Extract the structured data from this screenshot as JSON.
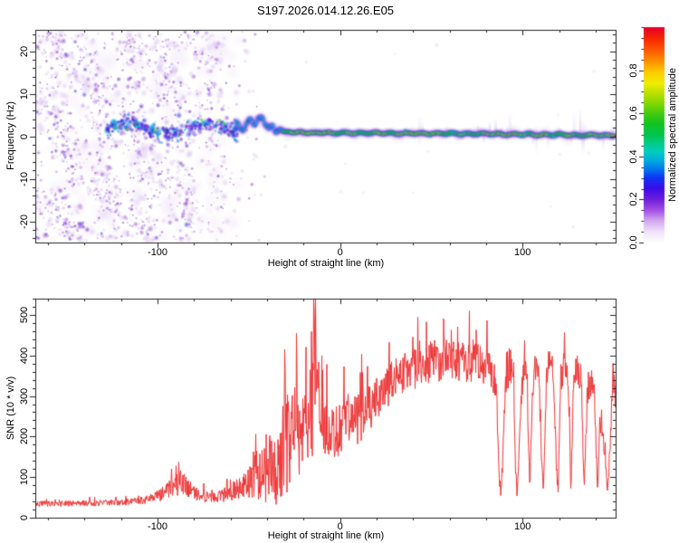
{
  "title": "S197.2026.014.12.26.E05",
  "chart_data": [
    {
      "type": "heatmap",
      "title": "",
      "xlabel": "Height of straight line (km)",
      "ylabel": "Frequency (Hz)",
      "xlim": [
        -167,
        151
      ],
      "ylim": [
        -25,
        25
      ],
      "xticks": [
        -100,
        0,
        100
      ],
      "xtick_minor_step": 20,
      "yticks": [
        -20,
        -10,
        0,
        10,
        20
      ],
      "ytick_minor_step": 2,
      "grid": false,
      "colorbar": {
        "label": "Normalized spectral amplitude",
        "ticks": [
          0,
          0.2,
          0.4,
          0.6,
          0.8
        ],
        "tick_minor_step": 0.05,
        "lim": [
          0,
          1
        ],
        "stops": [
          [
            0.0,
            "#ffffff"
          ],
          [
            0.05,
            "#f0e2fa"
          ],
          [
            0.1,
            "#d4a9f0"
          ],
          [
            0.15,
            "#a44fe4"
          ],
          [
            0.2,
            "#6f1fdd"
          ],
          [
            0.25,
            "#3c0ce8"
          ],
          [
            0.3,
            "#1133f2"
          ],
          [
            0.34,
            "#0077ee"
          ],
          [
            0.38,
            "#00aadd"
          ],
          [
            0.42,
            "#00ccc2"
          ],
          [
            0.46,
            "#00cc88"
          ],
          [
            0.5,
            "#00c44d"
          ],
          [
            0.55,
            "#11c422"
          ],
          [
            0.6,
            "#44cc11"
          ],
          [
            0.65,
            "#88d800"
          ],
          [
            0.7,
            "#c4e200"
          ],
          [
            0.74,
            "#eeee00"
          ],
          [
            0.79,
            "#ffcc00"
          ],
          [
            0.84,
            "#ff9100"
          ],
          [
            0.9,
            "#ff5100"
          ],
          [
            0.95,
            "#f52500"
          ],
          [
            1.0,
            "#e4002e"
          ]
        ]
      },
      "noise": {
        "field_km_range": [
          -167,
          -36
        ],
        "density_profile": [
          [
            -167,
            1.0
          ],
          [
            -112,
            1.0
          ],
          [
            -82,
            0.82
          ],
          [
            -64,
            0.45
          ],
          [
            -54,
            0.18
          ],
          [
            -45,
            0.07
          ],
          [
            -36,
            0.02
          ]
        ],
        "attempts": 3600,
        "palette": [
          [
            "#cdaaea",
            0.4,
            0.4
          ],
          [
            "#a566dd",
            0.5,
            0.3
          ],
          [
            "#7a22cc",
            0.55,
            0.2
          ],
          [
            "#5503c6",
            0.6,
            0.08
          ],
          [
            "#2822dd",
            0.65,
            0.02
          ]
        ],
        "haze_count": 150,
        "band": {
          "km_range": [
            -128,
            -56
          ],
          "center_hz": 1.8,
          "count": 330,
          "palette": [
            [
              "#2a20e0",
              0.55,
              0.48
            ],
            [
              "#6a10d0",
              0.55,
              0.22
            ],
            [
              "#00b4e4",
              0.85,
              0.16
            ],
            [
              "#3300bb",
              0.6,
              0.08
            ],
            [
              "#44cc22",
              0.85,
              0.06
            ]
          ]
        },
        "sparse_count": 16
      },
      "signal": {
        "trace_km_hz": [
          [
            -57,
            3.2
          ],
          [
            -55,
            2.2
          ],
          [
            -53,
            1.4
          ],
          [
            -51,
            3.0
          ],
          [
            -49,
            4.2
          ],
          [
            -47,
            2.6
          ],
          [
            -45,
            3.8
          ],
          [
            -43,
            4.6
          ],
          [
            -41,
            3.0
          ],
          [
            -39,
            1.6
          ],
          [
            -37,
            2.4
          ],
          [
            -35,
            1.0
          ],
          [
            -33,
            1.6
          ],
          [
            -31,
            0.9
          ],
          [
            -28,
            1.2
          ],
          [
            -25,
            0.8
          ],
          [
            -20,
            1.0
          ],
          [
            -15,
            0.7
          ],
          [
            -10,
            0.9
          ],
          [
            -5,
            0.7
          ],
          [
            0,
            0.8
          ],
          [
            10,
            0.7
          ],
          [
            20,
            0.8
          ],
          [
            30,
            0.6
          ],
          [
            40,
            0.7
          ],
          [
            50,
            0.6
          ],
          [
            60,
            0.7
          ],
          [
            70,
            0.5
          ],
          [
            80,
            0.6
          ],
          [
            90,
            0.4
          ],
          [
            100,
            0.5
          ],
          [
            110,
            0.3
          ],
          [
            120,
            0.4
          ],
          [
            130,
            0.2
          ],
          [
            140,
            0.3
          ],
          [
            148,
            0.1
          ],
          [
            151,
            0.2
          ]
        ],
        "wiggle_km_range": [
          -57,
          -31
        ],
        "line_km_range": [
          -31,
          151
        ],
        "core_color": "#e60028",
        "hot_color": "#eeee00",
        "sheath_color": "#00cc33",
        "inner_glow": "#00c0e0",
        "outer_glow": "#3318e0",
        "fringe_color": "#8c3cdc"
      }
    },
    {
      "type": "line",
      "title": "",
      "xlabel": "Height of straight line (km)",
      "ylabel": "SNR (10 * v/v)",
      "xlim": [
        -167,
        151
      ],
      "ylim": [
        0,
        540
      ],
      "xticks": [
        -100,
        0,
        100
      ],
      "xtick_minor_step": 20,
      "yticks": [
        0,
        100,
        200,
        300,
        400,
        500
      ],
      "ytick_minor_step": 20,
      "grid": false,
      "series": [
        {
          "name": "SNR",
          "color": "#ee3434",
          "envelope_km_mean_amp": [
            [
              -167,
              32,
              14
            ],
            [
              -160,
              33,
              14
            ],
            [
              -152,
              33,
              14
            ],
            [
              -144,
              34,
              14
            ],
            [
              -136,
              34,
              15
            ],
            [
              -128,
              35,
              15
            ],
            [
              -120,
              36,
              15
            ],
            [
              -113,
              38,
              17
            ],
            [
              -107,
              42,
              20
            ],
            [
              -102,
              47,
              24
            ],
            [
              -97,
              56,
              36
            ],
            [
              -92,
              66,
              50
            ],
            [
              -88,
              80,
              66
            ],
            [
              -84,
              72,
              58
            ],
            [
              -80,
              60,
              42
            ],
            [
              -76,
              50,
              30
            ],
            [
              -72,
              47,
              26
            ],
            [
              -68,
              48,
              28
            ],
            [
              -64,
              52,
              36
            ],
            [
              -60,
              58,
              50
            ],
            [
              -56,
              60,
              58
            ],
            [
              -52,
              68,
              84
            ],
            [
              -48,
              78,
              110
            ],
            [
              -45,
              88,
              140
            ],
            [
              -42,
              96,
              165
            ],
            [
              -39,
              106,
              190
            ],
            [
              -36,
              116,
              212
            ],
            [
              -33,
              130,
              232
            ],
            [
              -30,
              145,
              246
            ],
            [
              -27,
              160,
              250
            ],
            [
              -24,
              175,
              240
            ],
            [
              -21,
              190,
              222
            ],
            [
              -18,
              205,
              205
            ],
            [
              -15.5,
              285,
              390
            ],
            [
              -13.5,
              330,
              465
            ],
            [
              -12,
              255,
              265
            ],
            [
              -10,
              218,
              155
            ],
            [
              -8,
              210,
              140
            ],
            [
              -6,
              206,
              138
            ],
            [
              -4,
              202,
              136
            ],
            [
              -2,
              200,
              135
            ],
            [
              0,
              200,
              135
            ],
            [
              3,
              206,
              134
            ],
            [
              6,
              214,
              132
            ],
            [
              9,
              226,
              130
            ],
            [
              12,
              240,
              128
            ],
            [
              16,
              258,
              124
            ],
            [
              20,
              280,
              118
            ],
            [
              24,
              302,
              112
            ],
            [
              28,
              322,
              108
            ],
            [
              32,
              336,
              105
            ],
            [
              35,
              344,
              103
            ],
            [
              38,
              350,
              104
            ],
            [
              41,
              355,
              105
            ],
            [
              44,
              360,
              107
            ],
            [
              47,
              364,
              108
            ],
            [
              50,
              368,
              109
            ],
            [
              53,
              372,
              110
            ],
            [
              56,
              376,
              111
            ],
            [
              59,
              378,
              112
            ],
            [
              62,
              376,
              110
            ],
            [
              65,
              373,
              108
            ],
            [
              68,
              371,
              107
            ],
            [
              71,
              374,
              107
            ],
            [
              74,
              377,
              106
            ],
            [
              77,
              372,
              102
            ],
            [
              80,
              366,
              98
            ],
            [
              83,
              352,
              92
            ],
            [
              85.5,
              312,
              84
            ],
            [
              87,
              125,
              60
            ],
            [
              88,
              55,
              26
            ],
            [
              89,
              125,
              60
            ],
            [
              91,
              330,
              84
            ],
            [
              93,
              368,
              90
            ],
            [
              95,
              330,
              82
            ],
            [
              96,
              125,
              55
            ],
            [
              97,
              55,
              26
            ],
            [
              98,
              170,
              62
            ],
            [
              99.5,
              312,
              80
            ],
            [
              101,
              365,
              88
            ],
            [
              102.5,
              330,
              82
            ],
            [
              104,
              58,
              26
            ],
            [
              105.5,
              322,
              80
            ],
            [
              107,
              366,
              88
            ],
            [
              109,
              348,
              86
            ],
            [
              110.5,
              125,
              52
            ],
            [
              111.5,
              58,
              26
            ],
            [
              113,
              330,
              82
            ],
            [
              115,
              372,
              90
            ],
            [
              117,
              352,
              86
            ],
            [
              118.5,
              125,
              50
            ],
            [
              119.5,
              62,
              26
            ],
            [
              121,
              338,
              82
            ],
            [
              123,
              365,
              86
            ],
            [
              125,
              348,
              82
            ],
            [
              126.5,
              60,
              26
            ],
            [
              128,
              328,
              80
            ],
            [
              130,
              358,
              84
            ],
            [
              132,
              338,
              80
            ],
            [
              133.8,
              56,
              26
            ],
            [
              135.5,
              308,
              76
            ],
            [
              137.5,
              328,
              78
            ],
            [
              139.5,
              298,
              74
            ],
            [
              141,
              60,
              26
            ],
            [
              142.5,
              240,
              64
            ],
            [
              144.5,
              180,
              54
            ],
            [
              146.5,
              70,
              32
            ],
            [
              148,
              150,
              62
            ],
            [
              149.5,
              365,
              85
            ],
            [
              150.5,
              305,
              74
            ],
            [
              151,
              285,
              70
            ]
          ]
        }
      ]
    }
  ]
}
